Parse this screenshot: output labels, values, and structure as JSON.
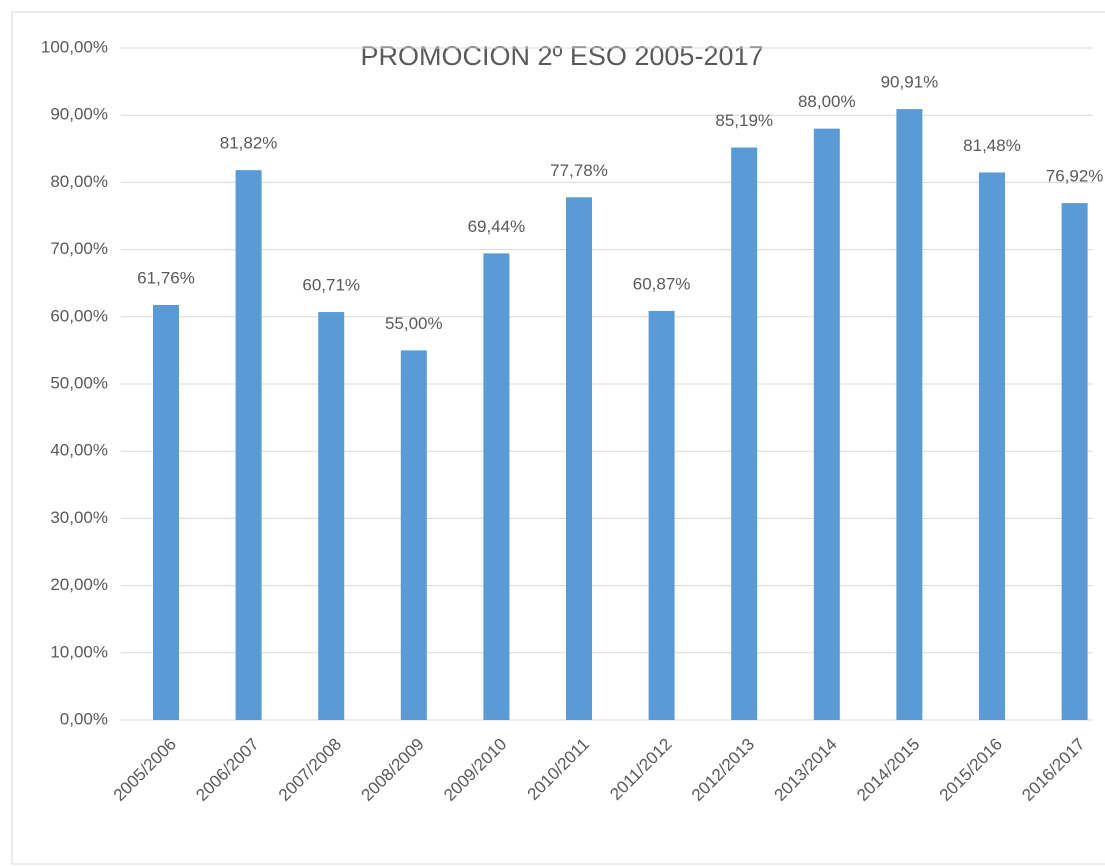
{
  "chart_data": {
    "type": "bar",
    "title": "PROMOCION 2º ESO 2005-2017",
    "categories": [
      "2005/2006",
      "2006/2007",
      "2007/2008",
      "2008/2009",
      "2009/2010",
      "2010/2011",
      "2011/2012",
      "2012/2013",
      "2013/2014",
      "2014/2015",
      "2015/2016",
      "2016/2017"
    ],
    "values": [
      61.76,
      81.82,
      60.71,
      55.0,
      69.44,
      77.78,
      60.87,
      85.19,
      88.0,
      90.91,
      81.48,
      76.92
    ],
    "value_labels": [
      "61,76%",
      "81,82%",
      "60,71%",
      "55,00%",
      "69,44%",
      "77,78%",
      "60,87%",
      "85,19%",
      "88,00%",
      "90,91%",
      "81,48%",
      "76,92%"
    ],
    "color": "#5b9bd5",
    "ylim": [
      0,
      100
    ],
    "yticks": [
      {
        "value": 0,
        "label": "0,00%"
      },
      {
        "value": 10,
        "label": "10,00%"
      },
      {
        "value": 20,
        "label": "20,00%"
      },
      {
        "value": 30,
        "label": "30,00%"
      },
      {
        "value": 40,
        "label": "40,00%"
      },
      {
        "value": 50,
        "label": "50,00%"
      },
      {
        "value": 60,
        "label": "60,00%"
      },
      {
        "value": 70,
        "label": "70,00%"
      },
      {
        "value": 80,
        "label": "80,00%"
      },
      {
        "value": 90,
        "label": "90,00%"
      },
      {
        "value": 100,
        "label": "100,00%"
      }
    ],
    "grid": true
  }
}
